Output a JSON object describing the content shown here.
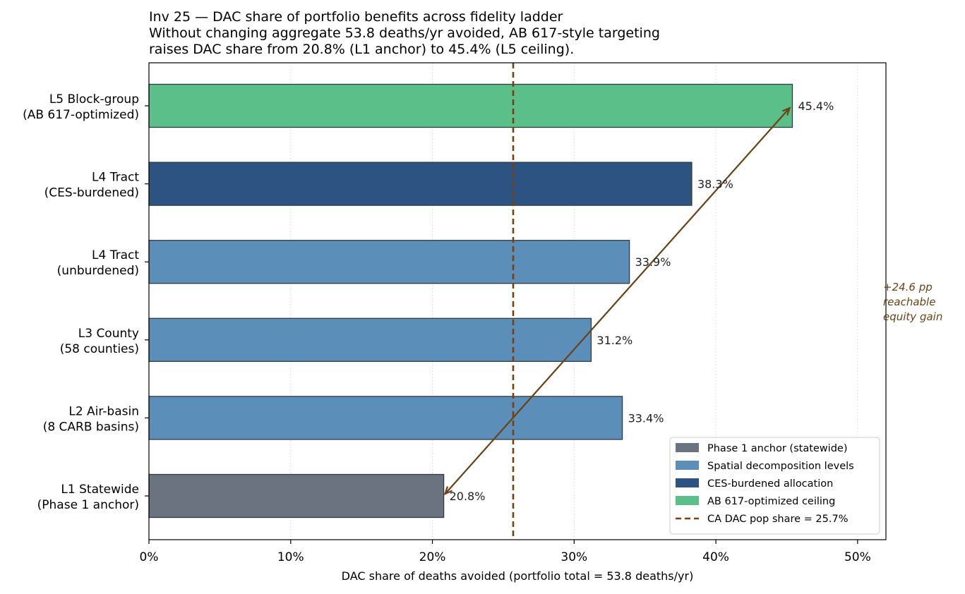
{
  "chart_data": {
    "type": "bar",
    "orientation": "horizontal",
    "title": [
      "Inv 25 — DAC share of portfolio benefits across fidelity ladder",
      "Without changing aggregate 53.8 deaths/yr avoided, AB 617-style targeting",
      "raises DAC share from 20.8% (L1 anchor) to 45.4% (L5 ceiling)."
    ],
    "xlabel": "DAC share of deaths avoided (portfolio total = 53.8 deaths/yr)",
    "ylabel": "",
    "xlim": [
      0,
      52
    ],
    "xticks": [
      0,
      10,
      20,
      30,
      40,
      50
    ],
    "xtick_labels": [
      "0%",
      "10%",
      "20%",
      "30%",
      "40%",
      "50%"
    ],
    "grid": "vertical dotted",
    "categories": [
      [
        "L1 Statewide",
        "(Phase 1 anchor)"
      ],
      [
        "L2 Air-basin",
        "(8 CARB basins)"
      ],
      [
        "L3 County",
        "(58 counties)"
      ],
      [
        "L4 Tract",
        "(unburdened)"
      ],
      [
        "L4 Tract",
        "(CES-burdened)"
      ],
      [
        "L5 Block-group",
        "(AB 617-optimized)"
      ]
    ],
    "values": [
      20.8,
      33.4,
      31.2,
      33.9,
      38.3,
      45.4
    ],
    "value_labels": [
      "20.8%",
      "33.4%",
      "31.2%",
      "33.9%",
      "38.3%",
      "45.4%"
    ],
    "bar_groups": [
      "anchor",
      "spatial",
      "spatial",
      "spatial",
      "ces",
      "ab617"
    ],
    "colors": {
      "anchor": "#6b7280",
      "spatial": "#5b8fb9",
      "ces": "#2d5382",
      "ab617": "#5bbf8a",
      "edge": "#2f3b3f",
      "reference": "#7a3e0f",
      "arrow": "#6b4214"
    },
    "reference_line": {
      "value": 25.7,
      "label": "CA DAC pop share = 25.7%"
    },
    "annotation": {
      "lines": [
        "+24.6 pp",
        "reachable",
        "equity gain"
      ],
      "arrow_from": {
        "category_index": 5,
        "value": 45.4
      },
      "arrow_to": {
        "category_index": 0,
        "value": 20.8
      }
    },
    "legend": {
      "placement": "lower-right",
      "entries": [
        {
          "label": "Phase 1 anchor (statewide)",
          "group": "anchor"
        },
        {
          "label": "Spatial decomposition levels",
          "group": "spatial"
        },
        {
          "label": "CES-burdened allocation",
          "group": "ces"
        },
        {
          "label": "AB 617-optimized ceiling",
          "group": "ab617"
        },
        {
          "label": "CA DAC pop share = 25.7%",
          "group": "reference"
        }
      ]
    }
  }
}
